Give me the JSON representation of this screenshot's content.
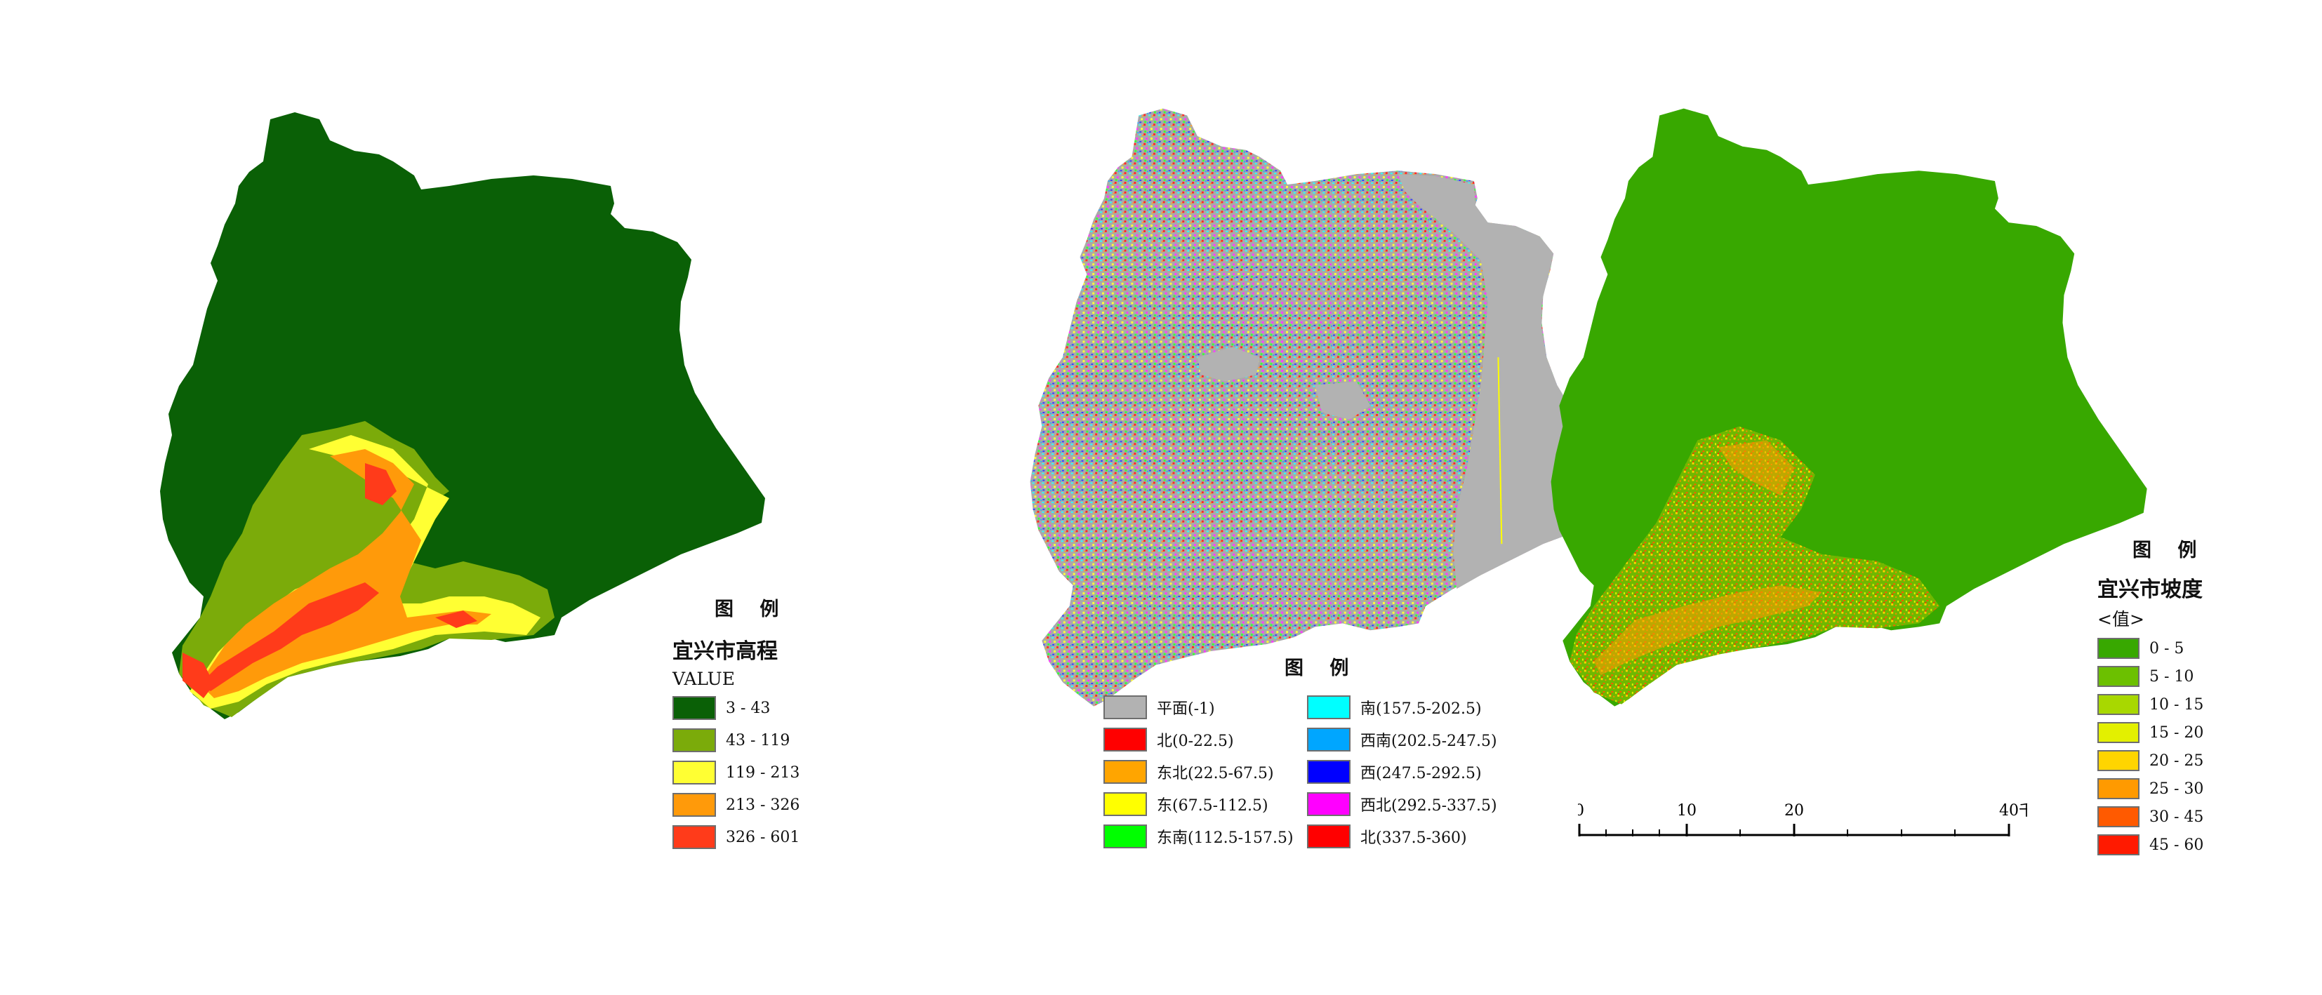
{
  "elevation": {
    "legend_title": "图 例",
    "layer_name": "宜兴市高程",
    "field_name": "VALUE",
    "classes": [
      {
        "label": "3 - 43",
        "color": "#0a6006"
      },
      {
        "label": "43 - 119",
        "color": "#7bab0a"
      },
      {
        "label": "119 - 213",
        "color": "#ffff33"
      },
      {
        "label": "213 - 326",
        "color": "#ff9a0a"
      },
      {
        "label": "326 - 601",
        "color": "#ff3b1a"
      }
    ]
  },
  "aspect": {
    "legend_title": "图 例",
    "classes": [
      {
        "label": "平面(-1)",
        "color": "#b2b2b2"
      },
      {
        "label": "北(0-22.5)",
        "color": "#ff0000"
      },
      {
        "label": "东北(22.5-67.5)",
        "color": "#ffa500"
      },
      {
        "label": "东(67.5-112.5)",
        "color": "#ffff00"
      },
      {
        "label": "东南(112.5-157.5)",
        "color": "#00ff00"
      },
      {
        "label": "南(157.5-202.5)",
        "color": "#00ffff"
      },
      {
        "label": "西南(202.5-247.5)",
        "color": "#00a6ff"
      },
      {
        "label": "西(247.5-292.5)",
        "color": "#0000ff"
      },
      {
        "label": "西北(292.5-337.5)",
        "color": "#ff00ff"
      },
      {
        "label": "北(337.5-360)",
        "color": "#ff0000"
      }
    ]
  },
  "slope": {
    "legend_title": "图 例",
    "layer_name": "宜兴市坡度",
    "field_name": "<值>",
    "classes": [
      {
        "label": "0 - 5",
        "color": "#38a800"
      },
      {
        "label": "5 - 10",
        "color": "#6cc000"
      },
      {
        "label": "10 - 15",
        "color": "#a8d800"
      },
      {
        "label": "15 - 20",
        "color": "#e3f000"
      },
      {
        "label": "20 - 25",
        "color": "#ffd500"
      },
      {
        "label": "25 - 30",
        "color": "#ff9a00"
      },
      {
        "label": "30 - 45",
        "color": "#ff5a00"
      },
      {
        "label": "45 - 60",
        "color": "#ff1a00"
      }
    ]
  },
  "scale_bar": {
    "ticks": [
      "0",
      "10",
      "20",
      "40"
    ],
    "unit": "千米"
  }
}
